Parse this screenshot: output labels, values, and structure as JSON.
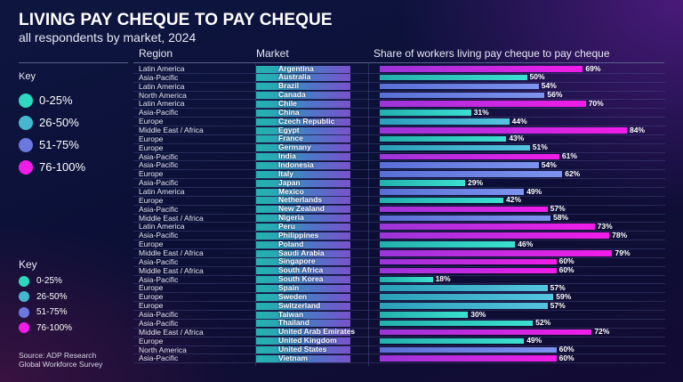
{
  "header": {
    "title": "LIVING PAY CHEQUE TO PAY CHEQUE",
    "subtitle": "all respondents by market, 2024"
  },
  "columns": {
    "region": "Region",
    "market": "Market",
    "share": "Share of workers living pay cheque to pay cheque"
  },
  "key": {
    "title": "Key",
    "items": [
      {
        "label": "0-25%",
        "color": "#2ed8c0"
      },
      {
        "label": "26-50%",
        "color": "#45b8d0"
      },
      {
        "label": "51-75%",
        "color": "#6a78e0"
      },
      {
        "label": "76-100%",
        "color": "#f01ce8"
      }
    ]
  },
  "source": {
    "line1": "Source: ADP Research",
    "line2": "Global Workforce Survey"
  },
  "chart_data": {
    "type": "bar",
    "orientation": "horizontal",
    "title": "LIVING PAY CHEQUE TO PAY CHEQUE",
    "subtitle": "all respondents by market, 2024",
    "xlabel": "Share of workers living pay cheque to pay cheque",
    "unit": "%",
    "xlim": [
      0,
      100
    ],
    "legend": {
      "title": "Key",
      "entries": [
        "0-25%",
        "26-50%",
        "51-75%",
        "76-100%"
      ],
      "position": "left"
    },
    "rows": [
      {
        "region": "Latin America",
        "market": "Argentina",
        "value": 69,
        "value_label": "69%",
        "color": "mag"
      },
      {
        "region": "Asia-Pacific",
        "market": "Australia",
        "value": 50,
        "value_label": "50%",
        "color": "tg"
      },
      {
        "region": "Latin America",
        "market": "Brazil",
        "value": 54,
        "value_label": "54%",
        "color": "per"
      },
      {
        "region": "North America",
        "market": "Canada",
        "value": 56,
        "value_label": "56%",
        "color": "per"
      },
      {
        "region": "Latin America",
        "market": "Chile",
        "value": 70,
        "value_label": "70%",
        "color": "mag"
      },
      {
        "region": "Asia-Pacific",
        "market": "China",
        "value": 31,
        "value_label": "31%",
        "color": "tg"
      },
      {
        "region": "Europe",
        "market": "Czech Republic",
        "value": 44,
        "value_label": "44%",
        "color": "tb"
      },
      {
        "region": "Middle East / Africa",
        "market": "Egypt",
        "value": 84,
        "value_label": "84%",
        "color": "mag"
      },
      {
        "region": "Europe",
        "market": "France",
        "value": 43,
        "value_label": "43%",
        "color": "tg"
      },
      {
        "region": "Europe",
        "market": "Germany",
        "value": 51,
        "value_label": "51%",
        "color": "tb"
      },
      {
        "region": "Asia-Pacific",
        "market": "India",
        "value": 61,
        "value_label": "61%",
        "color": "mag"
      },
      {
        "region": "Asia-Pacific",
        "market": "Indonesia",
        "value": 54,
        "value_label": "54%",
        "color": "per"
      },
      {
        "region": "Europe",
        "market": "Italy",
        "value": 62,
        "value_label": "62%",
        "color": "per"
      },
      {
        "region": "Asia-Pacific",
        "market": "Japan",
        "value": 29,
        "value_label": "29%",
        "color": "tg"
      },
      {
        "region": "Latin America",
        "market": "Mexico",
        "value": 49,
        "value_label": "49%",
        "color": "per"
      },
      {
        "region": "Europe",
        "market": "Netherlands",
        "value": 42,
        "value_label": "42%",
        "color": "tg"
      },
      {
        "region": "Asia-Pacific",
        "market": "New Zealand",
        "value": 57,
        "value_label": "57%",
        "color": "mag"
      },
      {
        "region": "Middle East / Africa",
        "market": "Nigeria",
        "value": 58,
        "value_label": "58%",
        "color": "per"
      },
      {
        "region": "Latin America",
        "market": "Peru",
        "value": 73,
        "value_label": "73%",
        "color": "mag"
      },
      {
        "region": "Asia-Pacific",
        "market": "Philippines",
        "value": 78,
        "value_label": "78%",
        "color": "mag"
      },
      {
        "region": "Europe",
        "market": "Poland",
        "value": 46,
        "value_label": "46%",
        "color": "tg"
      },
      {
        "region": "Middle East / Africa",
        "market": "Saudi Arabia",
        "value": 79,
        "value_label": "79%",
        "color": "mag"
      },
      {
        "region": "Asia-Pacific",
        "market": "Singapore",
        "value": 60,
        "value_label": "60%",
        "color": "mag"
      },
      {
        "region": "Middle East / Africa",
        "market": "South Africa",
        "value": 60,
        "value_label": "60%",
        "color": "mag"
      },
      {
        "region": "Asia-Pacific",
        "market": "South Korea",
        "value": 18,
        "value_label": "18%",
        "color": "tg"
      },
      {
        "region": "Europe",
        "market": "Spain",
        "value": 57,
        "value_label": "57%",
        "color": "tb"
      },
      {
        "region": "Europe",
        "market": "Sweden",
        "value": 59,
        "value_label": "59%",
        "color": "tb"
      },
      {
        "region": "Europe",
        "market": "Switzerland",
        "value": 57,
        "value_label": "57%",
        "color": "tb"
      },
      {
        "region": "Asia-Pacific",
        "market": "Taiwan",
        "value": 30,
        "value_label": "30%",
        "color": "tg"
      },
      {
        "region": "Asia-Pacific",
        "market": "Thailand",
        "value": 52,
        "value_label": "52%",
        "color": "tg"
      },
      {
        "region": "Middle East / Africa",
        "market": "United Arab Emirates",
        "value": 72,
        "value_label": "72%",
        "color": "mag"
      },
      {
        "region": "Europe",
        "market": "United Kingdom",
        "value": 49,
        "value_label": "49%",
        "color": "tg"
      },
      {
        "region": "North America",
        "market": "United States",
        "value": 60,
        "value_label": "60%",
        "color": "per"
      },
      {
        "region": "Asia-Pacific",
        "market": "Vietnam",
        "value": 60,
        "value_label": "60%",
        "color": "mag"
      }
    ]
  }
}
